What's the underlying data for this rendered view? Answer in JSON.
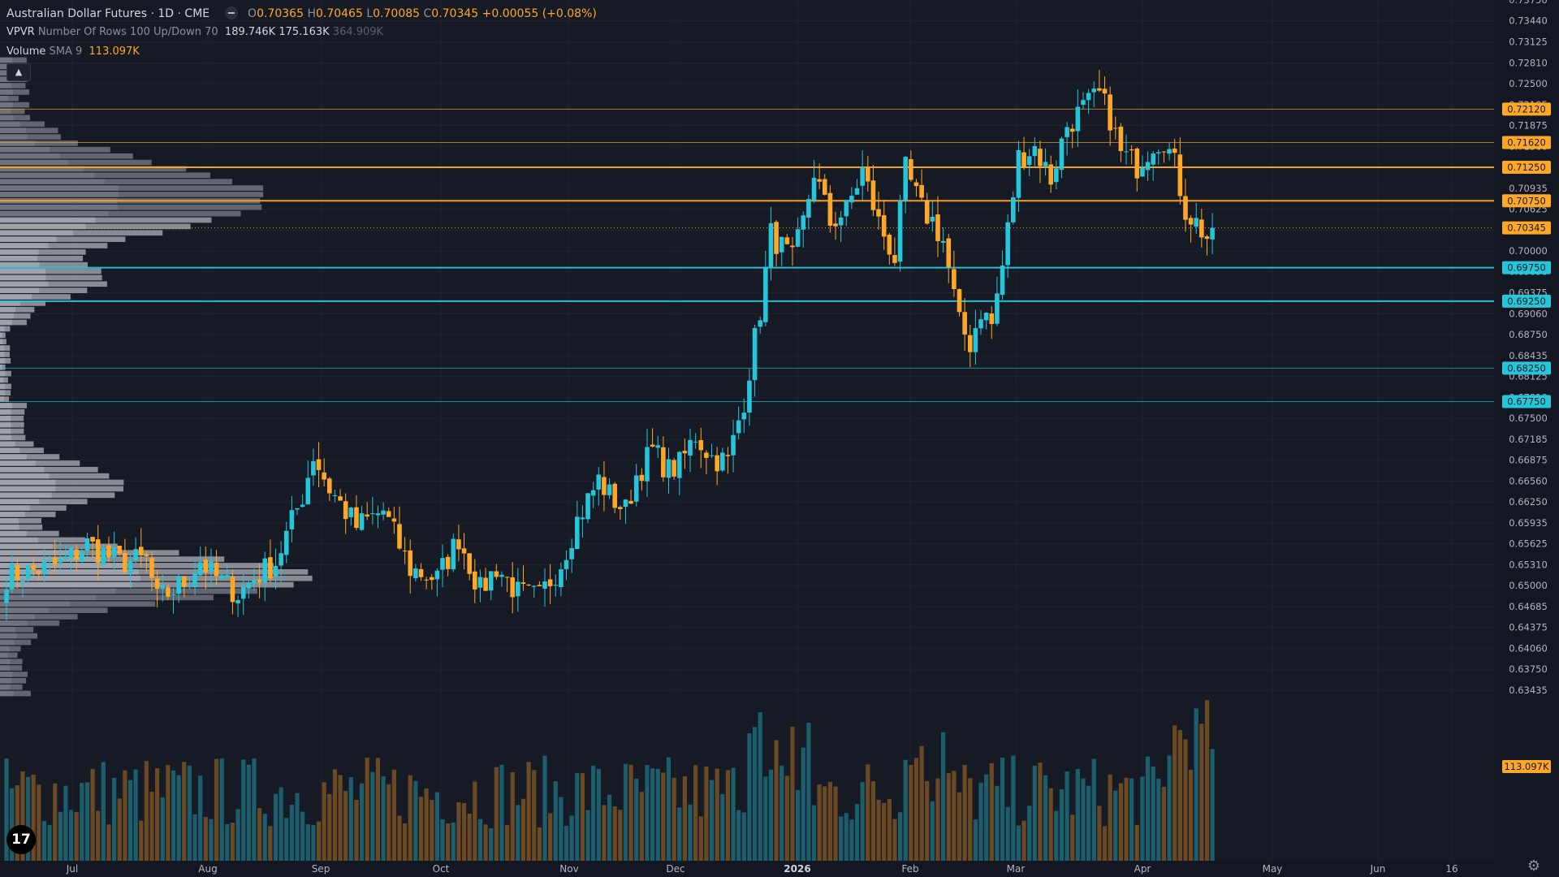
{
  "header": {
    "symbol": "Australian Dollar Futures · 1D · CME",
    "ohlc": {
      "o_label": "O",
      "o": "0.70365",
      "h_label": "H",
      "h": "0.70465",
      "l_label": "L",
      "l": "0.70085",
      "c_label": "C",
      "c": "0.70345",
      "change": "+0.00055 (+0.08%)"
    },
    "vpvr": {
      "name": "VPVR",
      "params": "Number Of Rows 100 Up/Down 70",
      "up": "189.746K",
      "down": "175.163K",
      "total": "364.909K"
    },
    "volume": {
      "name": "Volume",
      "params": "SMA 9",
      "value": "113.097K"
    }
  },
  "icons": {
    "collapse": "chevron-up-icon",
    "logo": "tradingview-logo-icon",
    "settings": "gear-icon",
    "eye": "eye-icon"
  },
  "colors": {
    "background": "#161a25",
    "up": "#26c6da",
    "down": "#ffa726",
    "profile": "#9598a1",
    "grid": "#1f2330",
    "text": "#b2b5be"
  },
  "chart_data": {
    "type": "candlestick",
    "title": "Australian Dollar Futures · 1D · CME",
    "x_tick_labels": [
      "Jul",
      "Aug",
      "Sep",
      "Oct",
      "Nov",
      "Dec",
      "2026",
      "Feb",
      "Mar",
      "Apr",
      "May",
      "Jun",
      "16"
    ],
    "y_tick_labels": [
      "0.73750",
      "0.73440",
      "0.73125",
      "0.72810",
      "0.72500",
      "0.72185",
      "0.71875",
      "0.71560",
      "0.71250",
      "0.70935",
      "0.70625",
      "0.70310",
      "0.70000",
      "0.69690",
      "0.69375",
      "0.69060",
      "0.68750",
      "0.68435",
      "0.68125",
      "0.67810",
      "0.67500",
      "0.67185",
      "0.66875",
      "0.66560",
      "0.66250",
      "0.65935",
      "0.65625",
      "0.65310",
      "0.65000",
      "0.64685",
      "0.64375",
      "0.64060",
      "0.63750",
      "0.63435"
    ],
    "ylim": [
      0.6334,
      0.7375
    ],
    "scale": "linear",
    "last_price": "0.70345",
    "volume_label": "113.097K",
    "horizontal_levels": [
      {
        "value": 0.7212,
        "label": "0.72120",
        "color": "#ffa726",
        "style": "thin"
      },
      {
        "value": 0.7162,
        "label": "0.71620",
        "color": "#ffa726",
        "style": "thin"
      },
      {
        "value": 0.7125,
        "label": "0.71250",
        "color": "#ffa726",
        "style": "thick"
      },
      {
        "value": 0.7075,
        "label": "0.70750",
        "color": "#ffa726",
        "style": "thick"
      },
      {
        "value": 0.6975,
        "label": "0.69750",
        "color": "#26c6da",
        "style": "thick"
      },
      {
        "value": 0.6925,
        "label": "0.69250",
        "color": "#26c6da",
        "style": "thick"
      },
      {
        "value": 0.6825,
        "label": "0.68250",
        "color": "#26c6da",
        "style": "thin"
      },
      {
        "value": 0.6775,
        "label": "0.67750",
        "color": "#26c6da",
        "style": "thin"
      }
    ],
    "series": [
      {
        "name": "Price",
        "type": "candlestick",
        "anchors": [
          {
            "t": 1,
            "p": 0.6515
          },
          {
            "t": 10,
            "p": 0.6532
          },
          {
            "t": 15,
            "p": 0.6562
          },
          {
            "t": 21,
            "p": 0.6535
          },
          {
            "t": 26,
            "p": 0.6538
          },
          {
            "t": 28,
            "p": 0.6478
          },
          {
            "t": 33,
            "p": 0.6505
          },
          {
            "t": 36,
            "p": 0.6538
          },
          {
            "t": 38,
            "p": 0.6518
          },
          {
            "t": 43,
            "p": 0.6488
          },
          {
            "t": 46,
            "p": 0.6512
          },
          {
            "t": 50,
            "p": 0.6535
          },
          {
            "t": 55,
            "p": 0.6635
          },
          {
            "t": 57,
            "p": 0.6695
          },
          {
            "t": 60,
            "p": 0.6645
          },
          {
            "t": 65,
            "p": 0.6588
          },
          {
            "t": 70,
            "p": 0.6612
          },
          {
            "t": 75,
            "p": 0.6525
          },
          {
            "t": 80,
            "p": 0.651
          },
          {
            "t": 84,
            "p": 0.6572
          },
          {
            "t": 88,
            "p": 0.6492
          },
          {
            "t": 91,
            "p": 0.6528
          },
          {
            "t": 95,
            "p": 0.6488
          },
          {
            "t": 99,
            "p": 0.6482
          },
          {
            "t": 103,
            "p": 0.6535
          },
          {
            "t": 106,
            "p": 0.6598
          },
          {
            "t": 110,
            "p": 0.6658
          },
          {
            "t": 112,
            "p": 0.6635
          },
          {
            "t": 115,
            "p": 0.6612
          },
          {
            "t": 117,
            "p": 0.6665
          },
          {
            "t": 120,
            "p": 0.6702
          },
          {
            "t": 123,
            "p": 0.6672
          },
          {
            "t": 125,
            "p": 0.668
          },
          {
            "t": 128,
            "p": 0.6725
          },
          {
            "t": 131,
            "p": 0.6692
          },
          {
            "t": 134,
            "p": 0.6685
          },
          {
            "t": 137,
            "p": 0.6778
          },
          {
            "t": 140,
            "p": 0.6912
          },
          {
            "t": 142,
            "p": 0.7025
          },
          {
            "t": 143,
            "p": 0.7015
          },
          {
            "t": 146,
            "p": 0.6985
          },
          {
            "t": 148,
            "p": 0.7042
          },
          {
            "t": 150,
            "p": 0.712
          },
          {
            "t": 153,
            "p": 0.7042
          },
          {
            "t": 156,
            "p": 0.706
          },
          {
            "t": 159,
            "p": 0.712
          },
          {
            "t": 162,
            "p": 0.7042
          },
          {
            "t": 165,
            "p": 0.699
          },
          {
            "t": 167,
            "p": 0.712
          },
          {
            "t": 170,
            "p": 0.7062
          },
          {
            "t": 172,
            "p": 0.7045
          },
          {
            "t": 174,
            "p": 0.7015
          },
          {
            "t": 177,
            "p": 0.689
          },
          {
            "t": 179,
            "p": 0.6862
          },
          {
            "t": 181,
            "p": 0.6912
          },
          {
            "t": 183,
            "p": 0.689
          },
          {
            "t": 185,
            "p": 0.6978
          },
          {
            "t": 188,
            "p": 0.714
          },
          {
            "t": 191,
            "p": 0.7155
          },
          {
            "t": 194,
            "p": 0.7108
          },
          {
            "t": 197,
            "p": 0.7188
          },
          {
            "t": 200,
            "p": 0.7212
          },
          {
            "t": 203,
            "p": 0.7232
          },
          {
            "t": 205,
            "p": 0.72
          },
          {
            "t": 207,
            "p": 0.7145
          },
          {
            "t": 210,
            "p": 0.7128
          },
          {
            "t": 213,
            "p": 0.7162
          },
          {
            "t": 215,
            "p": 0.7168
          },
          {
            "t": 217,
            "p": 0.7128
          },
          {
            "t": 219,
            "p": 0.7062
          },
          {
            "t": 221,
            "p": 0.7042
          },
          {
            "t": 223,
            "p": 0.702
          },
          {
            "t": 224,
            "p": 0.70345
          }
        ]
      },
      {
        "name": "Volume",
        "type": "histogram",
        "sma_period": 9
      }
    ],
    "volume_profile": {
      "name": "VPVR",
      "rows": 100,
      "up_down_percent": 70,
      "up_volume": "189.746K",
      "down_volume": "175.163K",
      "total_volume": "364.909K",
      "value_area_price_range": [
        0.6495,
        0.7055
      ]
    }
  }
}
